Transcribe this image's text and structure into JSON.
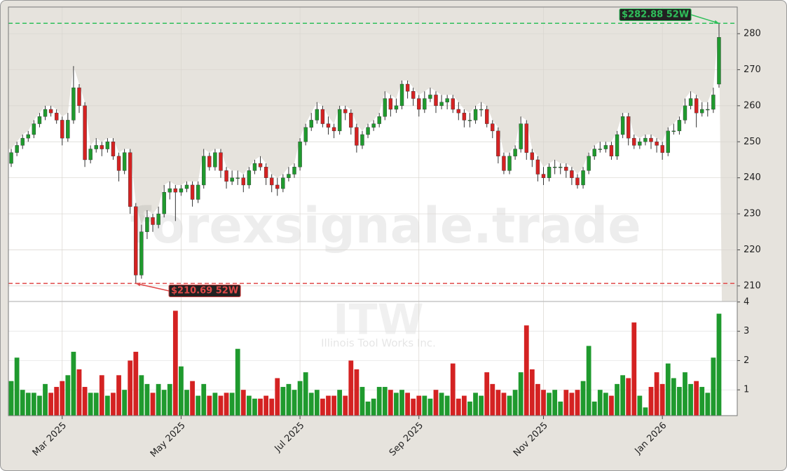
{
  "chart_data": {
    "type": "candlestick",
    "watermark": "forexsignale.trade",
    "symbol": "ITW",
    "company": "Illinois Tool Works Inc.",
    "categories": [
      null,
      null,
      null,
      null,
      null,
      null,
      null,
      null,
      null,
      "Mar 2025",
      null,
      null,
      null,
      null,
      null,
      null,
      null,
      null,
      null,
      null,
      null,
      null,
      null,
      null,
      null,
      null,
      null,
      null,
      null,
      null,
      "May 2025",
      null,
      null,
      null,
      null,
      null,
      null,
      null,
      null,
      null,
      null,
      null,
      null,
      null,
      null,
      null,
      null,
      null,
      null,
      null,
      null,
      "Jul 2025",
      null,
      null,
      null,
      null,
      null,
      null,
      null,
      null,
      null,
      null,
      null,
      null,
      null,
      null,
      null,
      null,
      null,
      null,
      null,
      null,
      "Sep 2025",
      null,
      null,
      null,
      null,
      null,
      null,
      null,
      null,
      null,
      null,
      null,
      null,
      null,
      null,
      null,
      null,
      null,
      null,
      null,
      null,
      null,
      "Nov 2025",
      null,
      null,
      null,
      null,
      null,
      null,
      null,
      null,
      null,
      null,
      null,
      null,
      null,
      null,
      null,
      null,
      null,
      null,
      null,
      null,
      "Jan 2026",
      null,
      null,
      null,
      null,
      null,
      null,
      null,
      null,
      null,
      null
    ],
    "open": [
      244,
      247,
      249,
      251,
      252,
      255,
      257,
      259,
      258,
      256,
      251,
      256,
      265,
      260,
      245,
      248,
      249,
      248,
      250,
      246,
      242,
      247,
      232,
      213,
      225,
      229,
      227,
      230,
      236,
      237,
      236,
      237,
      238,
      234,
      238,
      246,
      243,
      247,
      242,
      239,
      240,
      240,
      238,
      242,
      244,
      243,
      240,
      238,
      237,
      240,
      241,
      243,
      250,
      254,
      256,
      259,
      255,
      254,
      253,
      259,
      258,
      254,
      249,
      252,
      254,
      255,
      257,
      262,
      259,
      260,
      266,
      264,
      262,
      259,
      262,
      263,
      260,
      261,
      262,
      259,
      258,
      256,
      256,
      259,
      259,
      255,
      253,
      246,
      242,
      246,
      248,
      255,
      247,
      245,
      241,
      240,
      243,
      243,
      243,
      242,
      240,
      238,
      242,
      246,
      248,
      248,
      249,
      246,
      252,
      257,
      251,
      249,
      250,
      251,
      250,
      249,
      247,
      253,
      253,
      256,
      260,
      262,
      258,
      259,
      259,
      266
    ],
    "high": [
      248,
      250,
      252,
      253,
      256,
      258,
      260,
      260,
      259,
      257,
      258,
      271,
      266,
      261,
      249,
      251,
      250,
      251,
      251,
      247,
      248,
      248,
      233,
      227,
      231,
      230,
      232,
      238,
      239,
      238,
      238,
      239,
      239,
      239,
      248,
      247,
      248,
      248,
      243,
      242,
      242,
      241,
      243,
      245,
      246,
      244,
      241,
      240,
      241,
      243,
      244,
      251,
      255,
      258,
      261,
      260,
      257,
      255,
      260,
      260,
      259,
      255,
      253,
      255,
      256,
      258,
      264,
      263,
      262,
      267,
      267,
      265,
      263,
      264,
      265,
      264,
      263,
      263,
      263,
      261,
      259,
      258,
      260,
      261,
      260,
      256,
      254,
      247,
      247,
      249,
      257,
      256,
      248,
      246,
      243,
      244,
      245,
      244,
      244,
      243,
      241,
      243,
      247,
      249,
      250,
      250,
      250,
      253,
      258,
      258,
      252,
      251,
      252,
      252,
      251,
      250,
      254,
      255,
      257,
      262,
      264,
      263,
      261,
      261,
      265,
      282.88
    ],
    "low": [
      243,
      246,
      248,
      250,
      251,
      254,
      256,
      257,
      255,
      249,
      250,
      255,
      258,
      243,
      244,
      247,
      246,
      247,
      245,
      239,
      241,
      230,
      210.69,
      212,
      223,
      225,
      226,
      229,
      234,
      228,
      235,
      236,
      232,
      233,
      237,
      242,
      242,
      240,
      237,
      238,
      238,
      236,
      237,
      241,
      242,
      238,
      236,
      235,
      236,
      239,
      240,
      242,
      249,
      253,
      255,
      254,
      252,
      251,
      252,
      256,
      252,
      247,
      248,
      251,
      253,
      254,
      256,
      257,
      258,
      259,
      262,
      260,
      257,
      258,
      261,
      258,
      259,
      259,
      258,
      256,
      254,
      254,
      255,
      257,
      254,
      251,
      244,
      241,
      241,
      245,
      247,
      245,
      243,
      239,
      238,
      239,
      241,
      241,
      240,
      238,
      237,
      237,
      241,
      245,
      247,
      247,
      245,
      245,
      251,
      249,
      248,
      248,
      249,
      248,
      247,
      245,
      246,
      252,
      252,
      255,
      259,
      254,
      257,
      257,
      258,
      265
    ],
    "close": [
      247,
      249,
      251,
      252,
      255,
      257,
      259,
      258,
      256,
      251,
      256,
      265,
      260,
      245,
      248,
      249,
      248,
      250,
      246,
      242,
      247,
      232,
      213,
      225,
      229,
      227,
      230,
      236,
      237,
      236,
      237,
      238,
      234,
      238,
      246,
      243,
      247,
      242,
      239,
      240,
      240,
      238,
      242,
      244,
      243,
      240,
      238,
      237,
      240,
      241,
      243,
      250,
      254,
      256,
      259,
      255,
      254,
      253,
      259,
      258,
      254,
      249,
      252,
      254,
      255,
      257,
      262,
      259,
      260,
      266,
      264,
      262,
      259,
      262,
      263,
      260,
      261,
      262,
      259,
      258,
      256,
      256,
      259,
      259,
      255,
      253,
      246,
      242,
      246,
      248,
      255,
      247,
      245,
      241,
      240,
      243,
      243,
      243,
      242,
      240,
      238,
      242,
      246,
      248,
      248,
      249,
      246,
      252,
      257,
      251,
      249,
      250,
      251,
      250,
      249,
      247,
      253,
      253,
      256,
      260,
      262,
      258,
      259,
      259,
      263,
      279
    ],
    "volume": [
      1.3,
      2.1,
      1.0,
      0.9,
      0.9,
      0.8,
      1.2,
      0.9,
      1.1,
      1.3,
      1.5,
      2.3,
      1.7,
      1.1,
      0.9,
      0.9,
      1.5,
      0.8,
      0.9,
      1.5,
      1.0,
      2.0,
      2.3,
      1.5,
      1.2,
      0.9,
      1.2,
      1.0,
      1.2,
      3.7,
      1.8,
      1.0,
      1.3,
      0.8,
      1.2,
      0.8,
      0.9,
      0.8,
      0.9,
      0.9,
      2.4,
      1.0,
      0.8,
      0.7,
      0.7,
      0.8,
      0.7,
      1.4,
      1.1,
      1.2,
      1.0,
      1.3,
      1.6,
      0.9,
      1.0,
      0.7,
      0.8,
      0.8,
      1.0,
      0.8,
      2.0,
      1.7,
      1.1,
      0.6,
      0.7,
      1.1,
      1.1,
      1.0,
      0.9,
      1.0,
      0.9,
      0.7,
      0.8,
      0.8,
      0.7,
      1.0,
      0.9,
      0.8,
      1.9,
      0.7,
      0.8,
      0.6,
      0.9,
      0.8,
      1.6,
      1.2,
      1.0,
      0.9,
      0.8,
      1.0,
      1.6,
      3.2,
      1.7,
      1.2,
      1.0,
      0.9,
      1.0,
      0.6,
      1.0,
      0.9,
      1.0,
      1.3,
      2.5,
      0.6,
      1.0,
      0.9,
      0.8,
      1.2,
      1.5,
      1.4,
      3.3,
      0.8,
      0.4,
      1.1,
      1.6,
      1.2,
      1.9,
      1.4,
      1.1,
      1.6,
      1.2,
      1.3,
      1.1,
      0.9,
      2.1,
      3.6
    ],
    "up_color": "#1f9a2e",
    "down_color": "#d42222",
    "ylim": [
      205.7,
      287.4
    ],
    "yticks": [
      210,
      220,
      230,
      240,
      250,
      260,
      270,
      280
    ],
    "volume_ylim": [
      0.12,
      4.02
    ],
    "volume_yticks": [
      1,
      2,
      3,
      4
    ],
    "high_52w": {
      "value": 282.88,
      "label": "$282.88 52W",
      "color": "#2fbf5a"
    },
    "low_52w": {
      "value": 210.69,
      "label": "$210.69 52W",
      "color": "#e04848"
    },
    "grid": true
  }
}
